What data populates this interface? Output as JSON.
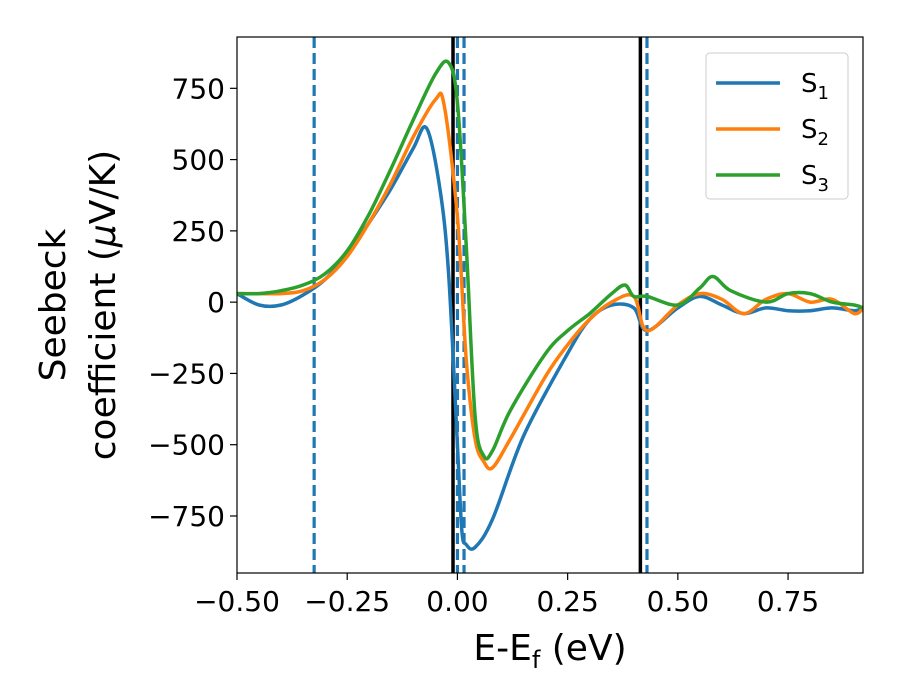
{
  "chart_data": {
    "type": "line",
    "xlabel": {
      "main": "E-E",
      "sub": "f",
      "tail": " (eV)"
    },
    "ylabel": {
      "line1": "Seebeck",
      "line2_prefix": "coefficient  (",
      "mu": "μ",
      "line2_suffix": "V/K)"
    },
    "xlim": [
      -0.5,
      0.92
    ],
    "ylim": [
      -950,
      930
    ],
    "xticks": [
      -0.5,
      -0.25,
      0.0,
      0.25,
      0.5,
      0.75
    ],
    "xtick_labels": [
      "−0.50",
      "−0.25",
      "0.00",
      "0.25",
      "0.50",
      "0.75"
    ],
    "yticks": [
      750,
      500,
      250,
      0,
      -250,
      -500,
      -750
    ],
    "ytick_labels": [
      "750",
      "500",
      "250",
      "0",
      "−250",
      "−500",
      "−750"
    ],
    "grid": false,
    "legend_position": "top-right",
    "series": [
      {
        "name": "S",
        "sub": "1",
        "color": "#1f77b4",
        "x": [
          -0.5,
          -0.45,
          -0.4,
          -0.35,
          -0.3,
          -0.25,
          -0.2,
          -0.15,
          -0.1,
          -0.07,
          -0.04,
          -0.02,
          0.0,
          0.01,
          0.02,
          0.04,
          0.08,
          0.15,
          0.25,
          0.3,
          0.35,
          0.4,
          0.43,
          0.5,
          0.55,
          0.6,
          0.65,
          0.7,
          0.75,
          0.8,
          0.85,
          0.9,
          0.92
        ],
        "y": [
          30,
          -10,
          -10,
          25,
          80,
          170,
          280,
          400,
          540,
          610,
          400,
          100,
          -500,
          -800,
          -850,
          -860,
          -760,
          -470,
          -180,
          -60,
          -10,
          -20,
          -100,
          -20,
          20,
          -10,
          -40,
          -20,
          -30,
          -30,
          -20,
          -30,
          -20
        ]
      },
      {
        "name": "S",
        "sub": "2",
        "color": "#ff7f0e",
        "x": [
          -0.5,
          -0.45,
          -0.4,
          -0.35,
          -0.3,
          -0.25,
          -0.2,
          -0.15,
          -0.1,
          -0.05,
          -0.03,
          0.0,
          0.02,
          0.04,
          0.06,
          0.08,
          0.12,
          0.2,
          0.25,
          0.3,
          0.35,
          0.4,
          0.43,
          0.5,
          0.55,
          0.6,
          0.65,
          0.7,
          0.75,
          0.8,
          0.85,
          0.9,
          0.92
        ],
        "y": [
          30,
          30,
          30,
          40,
          80,
          160,
          280,
          420,
          580,
          710,
          690,
          300,
          -200,
          -480,
          -560,
          -580,
          -480,
          -260,
          -150,
          -60,
          0,
          20,
          -100,
          -10,
          30,
          10,
          -40,
          10,
          30,
          0,
          10,
          -40,
          -20
        ]
      },
      {
        "name": "S",
        "sub": "3",
        "color": "#2ca02c",
        "x": [
          -0.5,
          -0.45,
          -0.4,
          -0.35,
          -0.3,
          -0.25,
          -0.2,
          -0.15,
          -0.1,
          -0.05,
          -0.02,
          0.0,
          0.02,
          0.04,
          0.06,
          0.08,
          0.12,
          0.2,
          0.25,
          0.3,
          0.35,
          0.38,
          0.4,
          0.43,
          0.5,
          0.55,
          0.58,
          0.62,
          0.7,
          0.75,
          0.8,
          0.85,
          0.9,
          0.92
        ],
        "y": [
          30,
          30,
          40,
          60,
          100,
          180,
          310,
          470,
          640,
          800,
          840,
          700,
          200,
          -400,
          -540,
          -520,
          -380,
          -180,
          -100,
          -40,
          30,
          60,
          20,
          20,
          -10,
          50,
          90,
          40,
          0,
          30,
          30,
          0,
          -10,
          -20
        ]
      }
    ],
    "vlines": [
      {
        "x": -0.325,
        "style": "dashed",
        "color": "#1f77b4"
      },
      {
        "x": -0.01,
        "style": "solid",
        "color": "#000000"
      },
      {
        "x": 0.0,
        "style": "dashed",
        "color": "#1f77b4"
      },
      {
        "x": 0.015,
        "style": "dashed",
        "color": "#1f77b4"
      },
      {
        "x": 0.415,
        "style": "solid",
        "color": "#000000"
      },
      {
        "x": 0.43,
        "style": "dashed",
        "color": "#1f77b4"
      }
    ]
  }
}
